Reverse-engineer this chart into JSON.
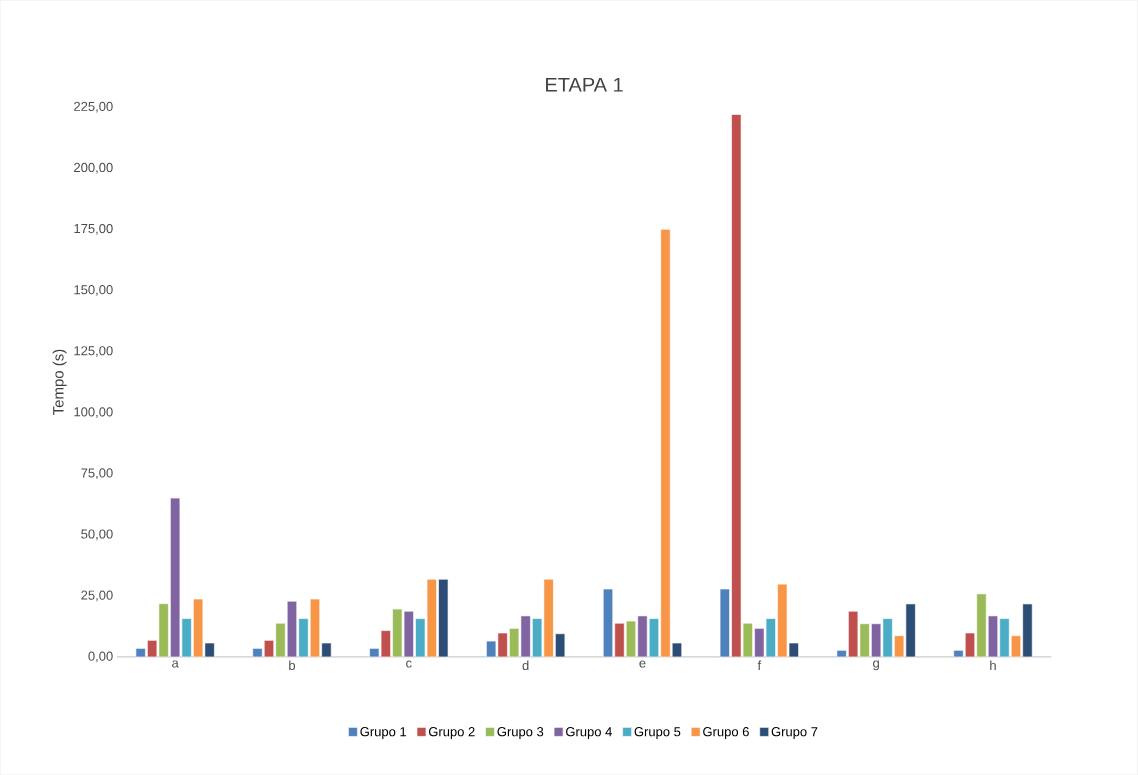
{
  "chart_data": {
    "type": "bar",
    "title": "ETAPA 1",
    "ylabel": "Tempo (s)",
    "categories": [
      "a",
      "b",
      "c",
      "d",
      "e",
      "f",
      "g",
      "h"
    ],
    "ylim": [
      0,
      225
    ],
    "yticks": [
      {
        "value": 0,
        "label": "0,00"
      },
      {
        "value": 25,
        "label": "25,00"
      },
      {
        "value": 50,
        "label": "50,00"
      },
      {
        "value": 75,
        "label": "75,00"
      },
      {
        "value": 100,
        "label": "100,00"
      },
      {
        "value": 125,
        "label": "125,00"
      },
      {
        "value": 150,
        "label": "150,00"
      },
      {
        "value": 175,
        "label": "175,00"
      },
      {
        "value": 200,
        "label": "200,00"
      },
      {
        "value": 225,
        "label": "225,00"
      }
    ],
    "grid": false,
    "legend": "bottom",
    "series": [
      {
        "name": "Grupo 1",
        "color": "#4f81bd",
        "values": [
          3.5,
          3.5,
          3.5,
          6.5,
          27.8,
          27.8,
          2.7,
          2.7
        ]
      },
      {
        "name": "Grupo 2",
        "color": "#c0504d",
        "values": [
          6.8,
          6.8,
          10.8,
          9.8,
          13.8,
          222,
          18.7,
          9.8
        ]
      },
      {
        "name": "Grupo 3",
        "color": "#9bbb59",
        "values": [
          21.8,
          13.8,
          19.6,
          11.7,
          14.7,
          13.8,
          13.6,
          25.8
        ]
      },
      {
        "name": "Grupo 4",
        "color": "#8064a2",
        "values": [
          65,
          22.8,
          18.7,
          16.8,
          16.8,
          11.7,
          13.6,
          16.8
        ]
      },
      {
        "name": "Grupo 5",
        "color": "#4bacc6",
        "values": [
          15.7,
          15.7,
          15.7,
          15.7,
          15.7,
          15.7,
          15.7,
          15.7
        ]
      },
      {
        "name": "Grupo 6",
        "color": "#f79646",
        "values": [
          23.7,
          23.7,
          31.8,
          31.8,
          175,
          29.8,
          8.7,
          8.7
        ]
      },
      {
        "name": "Grupo 7",
        "color": "#2c4d75",
        "values": [
          5.7,
          5.7,
          31.8,
          9.5,
          5.7,
          5.7,
          21.7,
          21.7
        ]
      }
    ]
  }
}
